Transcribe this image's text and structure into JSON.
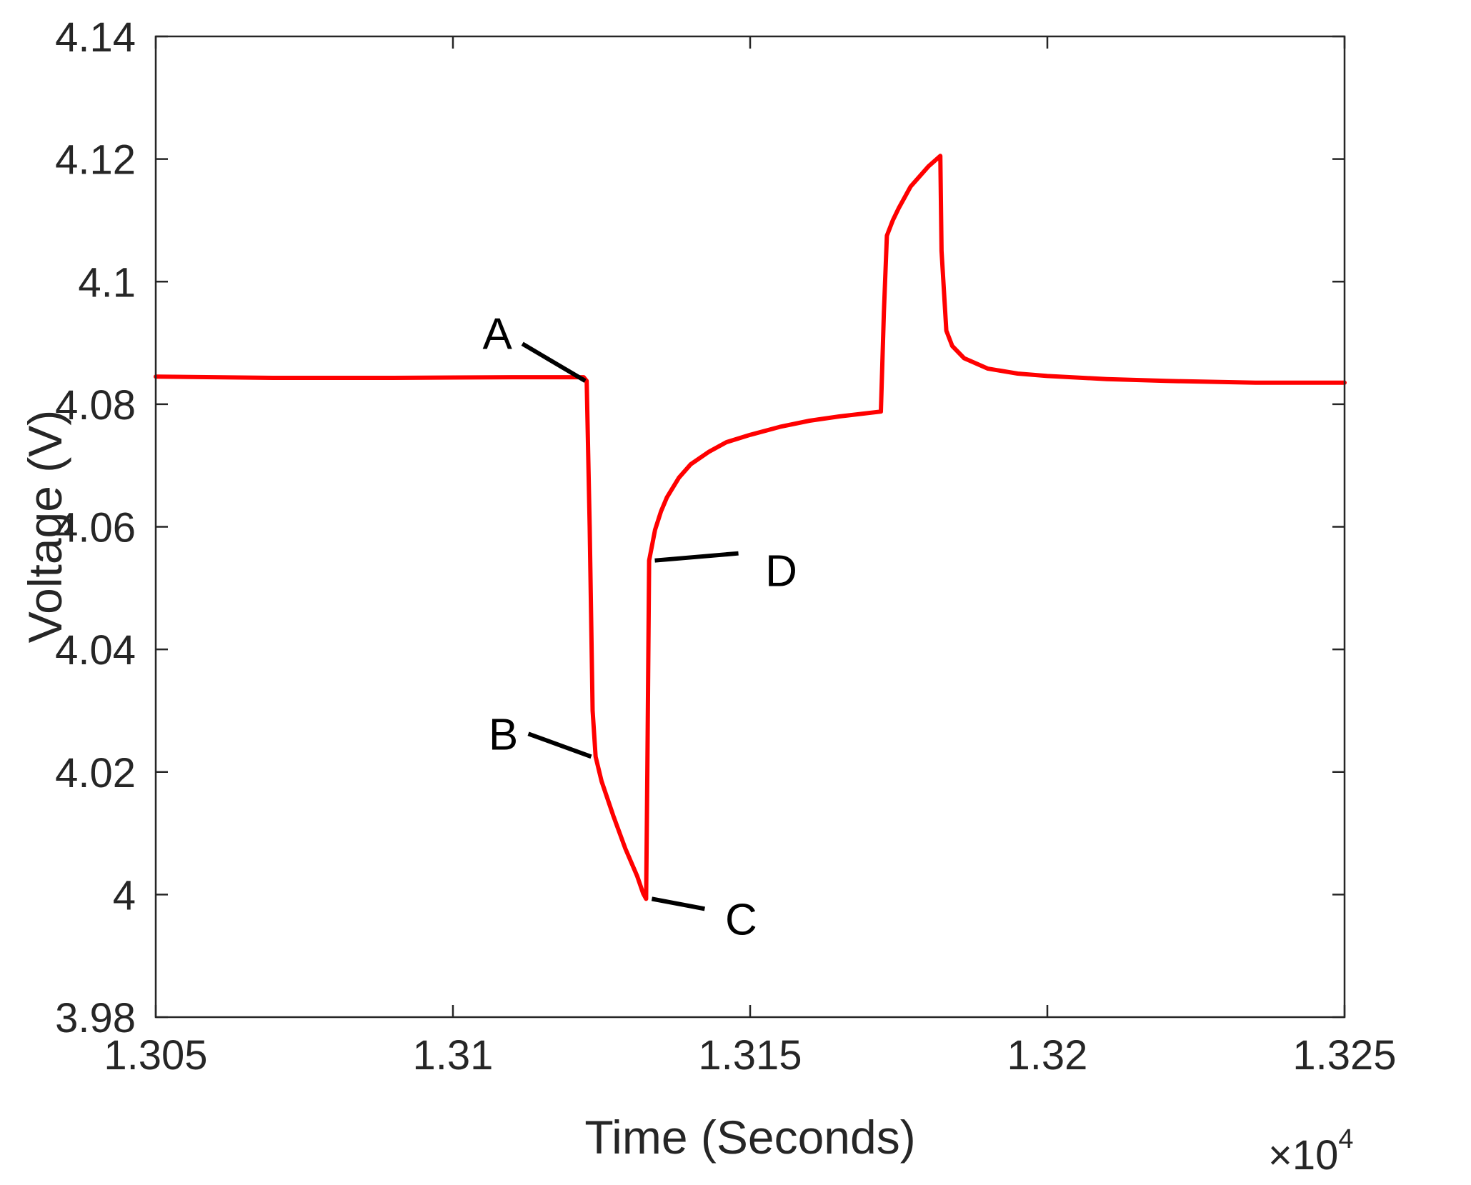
{
  "chart_data": {
    "type": "line",
    "title": "",
    "xlabel": "Time (Seconds)",
    "ylabel": "Voltage (V)",
    "x_multiplier": {
      "base": "×10",
      "exponent": "4"
    },
    "xlim": [
      1.305,
      1.325
    ],
    "ylim": [
      3.98,
      4.14
    ],
    "x_ticks": [
      1.305,
      1.31,
      1.315,
      1.32,
      1.325
    ],
    "x_tick_labels": [
      "1.305",
      "1.31",
      "1.315",
      "1.32",
      "1.325"
    ],
    "y_ticks": [
      3.98,
      4.0,
      4.02,
      4.04,
      4.06,
      4.08,
      4.1,
      4.12,
      4.14
    ],
    "y_tick_labels": [
      "3.98",
      "4",
      "4.02",
      "4.04",
      "4.06",
      "4.08",
      "4.1",
      "4.12",
      "4.14"
    ],
    "grid": false,
    "legend": "none",
    "series": [
      {
        "color": "#ff0000",
        "x": [
          1.305,
          1.307,
          1.309,
          1.311,
          1.3122,
          1.31225,
          1.3123,
          1.31235,
          1.3124,
          1.3125,
          1.3127,
          1.3129,
          1.3131,
          1.3132,
          1.31325,
          1.31327,
          1.3133,
          1.3134,
          1.3135,
          1.3136,
          1.3138,
          1.314,
          1.3143,
          1.3146,
          1.315,
          1.3155,
          1.316,
          1.3165,
          1.3172,
          1.31725,
          1.3173,
          1.3174,
          1.3175,
          1.3177,
          1.318,
          1.3182,
          1.31822,
          1.3183,
          1.3184,
          1.3186,
          1.319,
          1.3195,
          1.32,
          1.321,
          1.322,
          1.3235,
          1.325
        ],
        "y": [
          4.0845,
          4.0843,
          4.0843,
          4.0844,
          4.0844,
          4.0838,
          4.06,
          4.03,
          4.0225,
          4.0185,
          4.0128,
          4.0075,
          4.003,
          4.0002,
          3.9993,
          4.02,
          4.0545,
          4.0595,
          4.0625,
          4.0648,
          4.068,
          4.0702,
          4.0722,
          4.0738,
          4.075,
          4.0763,
          4.0773,
          4.078,
          4.0788,
          4.095,
          4.1075,
          4.11,
          4.112,
          4.1155,
          4.1188,
          4.1205,
          4.105,
          4.092,
          4.0895,
          4.0875,
          4.0858,
          4.085,
          4.0846,
          4.0841,
          4.0838,
          4.0835,
          4.0835
        ]
      }
    ],
    "annotations": [
      {
        "text": "A",
        "x": 1.31225,
        "y": 4.0838
      },
      {
        "text": "B",
        "x": 1.31235,
        "y": 4.0225
      },
      {
        "text": "C",
        "x": 1.31325,
        "y": 3.9993
      },
      {
        "text": "D",
        "x": 1.3133,
        "y": 4.0545
      }
    ]
  }
}
